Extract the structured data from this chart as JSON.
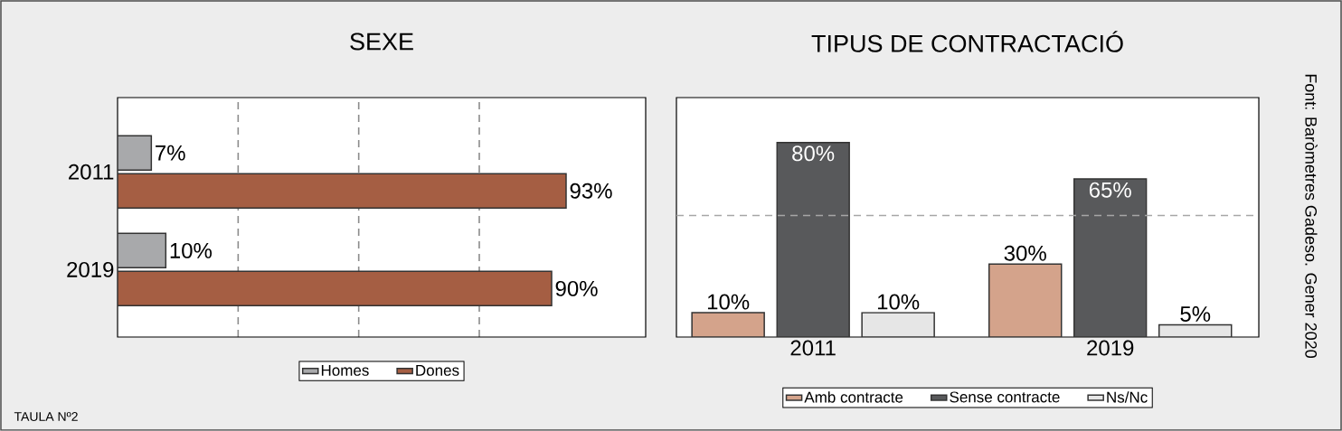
{
  "chart_data": [
    {
      "type": "bar",
      "title": "SEXE",
      "orientation": "horizontal",
      "categories": [
        "2011",
        "2019"
      ],
      "series": [
        {
          "name": "Homes",
          "color": "#a8a9ab",
          "values": [
            7,
            10
          ],
          "value_labels": [
            "7%",
            "10%"
          ]
        },
        {
          "name": "Dones",
          "color": "#a55e43",
          "values": [
            93,
            90
          ],
          "value_labels": [
            "93%",
            "90%"
          ]
        }
      ],
      "xlim": [
        0,
        109.5
      ],
      "xticks": [
        {
          "value": 25,
          "label": null
        },
        {
          "value": 50,
          "label": null
        },
        {
          "value": 75,
          "label": null
        }
      ],
      "grid": "x",
      "legend": "bottom",
      "tick_labels": "y",
      "annotations": [
        "TAULA Nº2"
      ]
    },
    {
      "type": "bar",
      "title": "TIPUS DE CONTRACTACIÓ",
      "categories": [
        "2011",
        "2019"
      ],
      "series": [
        {
          "name": "Amb contracte",
          "color": "#d4a38b",
          "values": [
            10,
            30
          ],
          "value_labels": [
            "10%",
            "30%"
          ]
        },
        {
          "name": "Sense contracte",
          "color": "#58595b",
          "values": [
            80,
            65
          ],
          "value_labels": [
            "80%",
            "65%"
          ]
        },
        {
          "name": "Ns/Nc",
          "color": "#e6e6e6",
          "values": [
            10,
            5
          ],
          "value_labels": [
            "10%",
            "5%"
          ]
        }
      ],
      "ylim": [
        0,
        98.5
      ],
      "ref_lines": [
        {
          "axis": "y",
          "value": 50,
          "color": "#a6a6a6",
          "line_style": "dashed"
        }
      ],
      "legend": "bottom",
      "tick_labels": "x",
      "annotations": [
        "Font: Baròmetres Gadeso. Gener 2020"
      ]
    }
  ]
}
